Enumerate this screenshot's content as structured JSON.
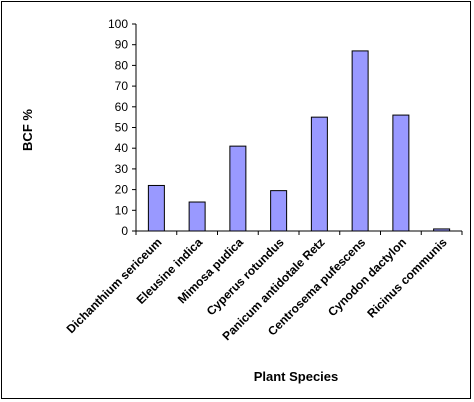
{
  "chart_data": {
    "type": "bar",
    "xlabel": "Plant Species",
    "ylabel": "BCF %",
    "ylim": [
      0,
      100
    ],
    "yticks": [
      0,
      10,
      20,
      30,
      40,
      50,
      60,
      70,
      80,
      90,
      100
    ],
    "categories": [
      "Dichanthium sericeum",
      "Eleusine indica",
      "Mimosa pudica",
      "Cyperus rotundus",
      "Panicum antidotale Retz",
      "Centrosema pufescens",
      "Cynodon dactylon",
      "Ricinus communis"
    ],
    "values": [
      22,
      14,
      41,
      19.5,
      55,
      87,
      56,
      1
    ],
    "bar_color": "#9999ff",
    "bar_stroke": "#000000",
    "grid": false
  }
}
